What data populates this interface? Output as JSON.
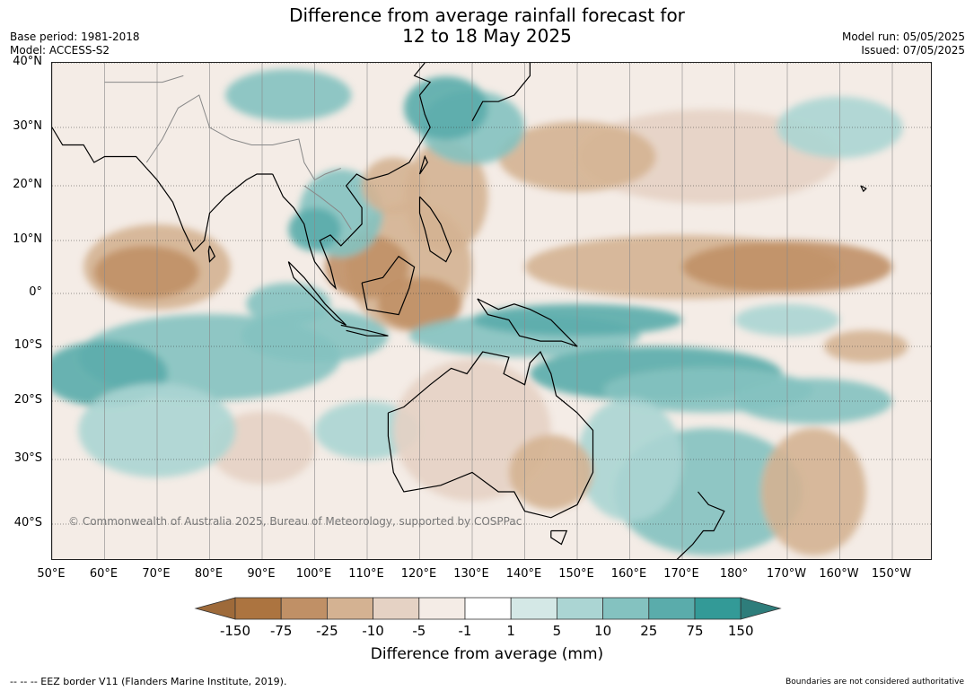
{
  "header": {
    "title_line1": "Difference from average rainfall forecast for",
    "title_line2": "12 to 18 May 2025",
    "base_period": "Base period: 1981-2018",
    "model": "Model: ACCESS-S2",
    "model_run": "Model run: 05/05/2025",
    "issued": "Issued: 07/05/2025"
  },
  "map": {
    "lat_labels": [
      "40°N",
      "30°N",
      "20°N",
      "10°N",
      "0°",
      "10°S",
      "20°S",
      "30°S",
      "40°S"
    ],
    "lon_labels": [
      "50°E",
      "60°E",
      "70°E",
      "80°E",
      "90°E",
      "100°E",
      "110°E",
      "120°E",
      "130°E",
      "140°E",
      "150°E",
      "160°E",
      "170°E",
      "180°",
      "170°W",
      "160°W",
      "150°W"
    ],
    "copyright": "© Commonwealth of Australia 2025, Bureau of Meteorology, supported by COSPPac",
    "colors": {
      "dry_extreme": "#9e6a3a",
      "dry_150": "#ac7440",
      "dry_75": "#c09066",
      "dry_25": "#d4b292",
      "dry_10": "#e5d2c4",
      "dry_5": "#f4ece6",
      "neutral": "#ffffff",
      "wet_5": "#d4e8e6",
      "wet_10": "#abd5d3",
      "wet_25": "#84c2c0",
      "wet_75": "#5aacab",
      "wet_150": "#339a97",
      "wet_extreme": "#2e7d7b"
    }
  },
  "colorbar": {
    "ticks": [
      "-150",
      "-75",
      "-25",
      "-10",
      "-5",
      "-1",
      "1",
      "5",
      "10",
      "25",
      "75",
      "150"
    ],
    "label": "Difference from average (mm)"
  },
  "footer": {
    "eez": "--  --  -- EEZ border V11 (Flanders Marine Institute, 2019).",
    "disclaimer": "Boundaries are not considered authoritative"
  }
}
